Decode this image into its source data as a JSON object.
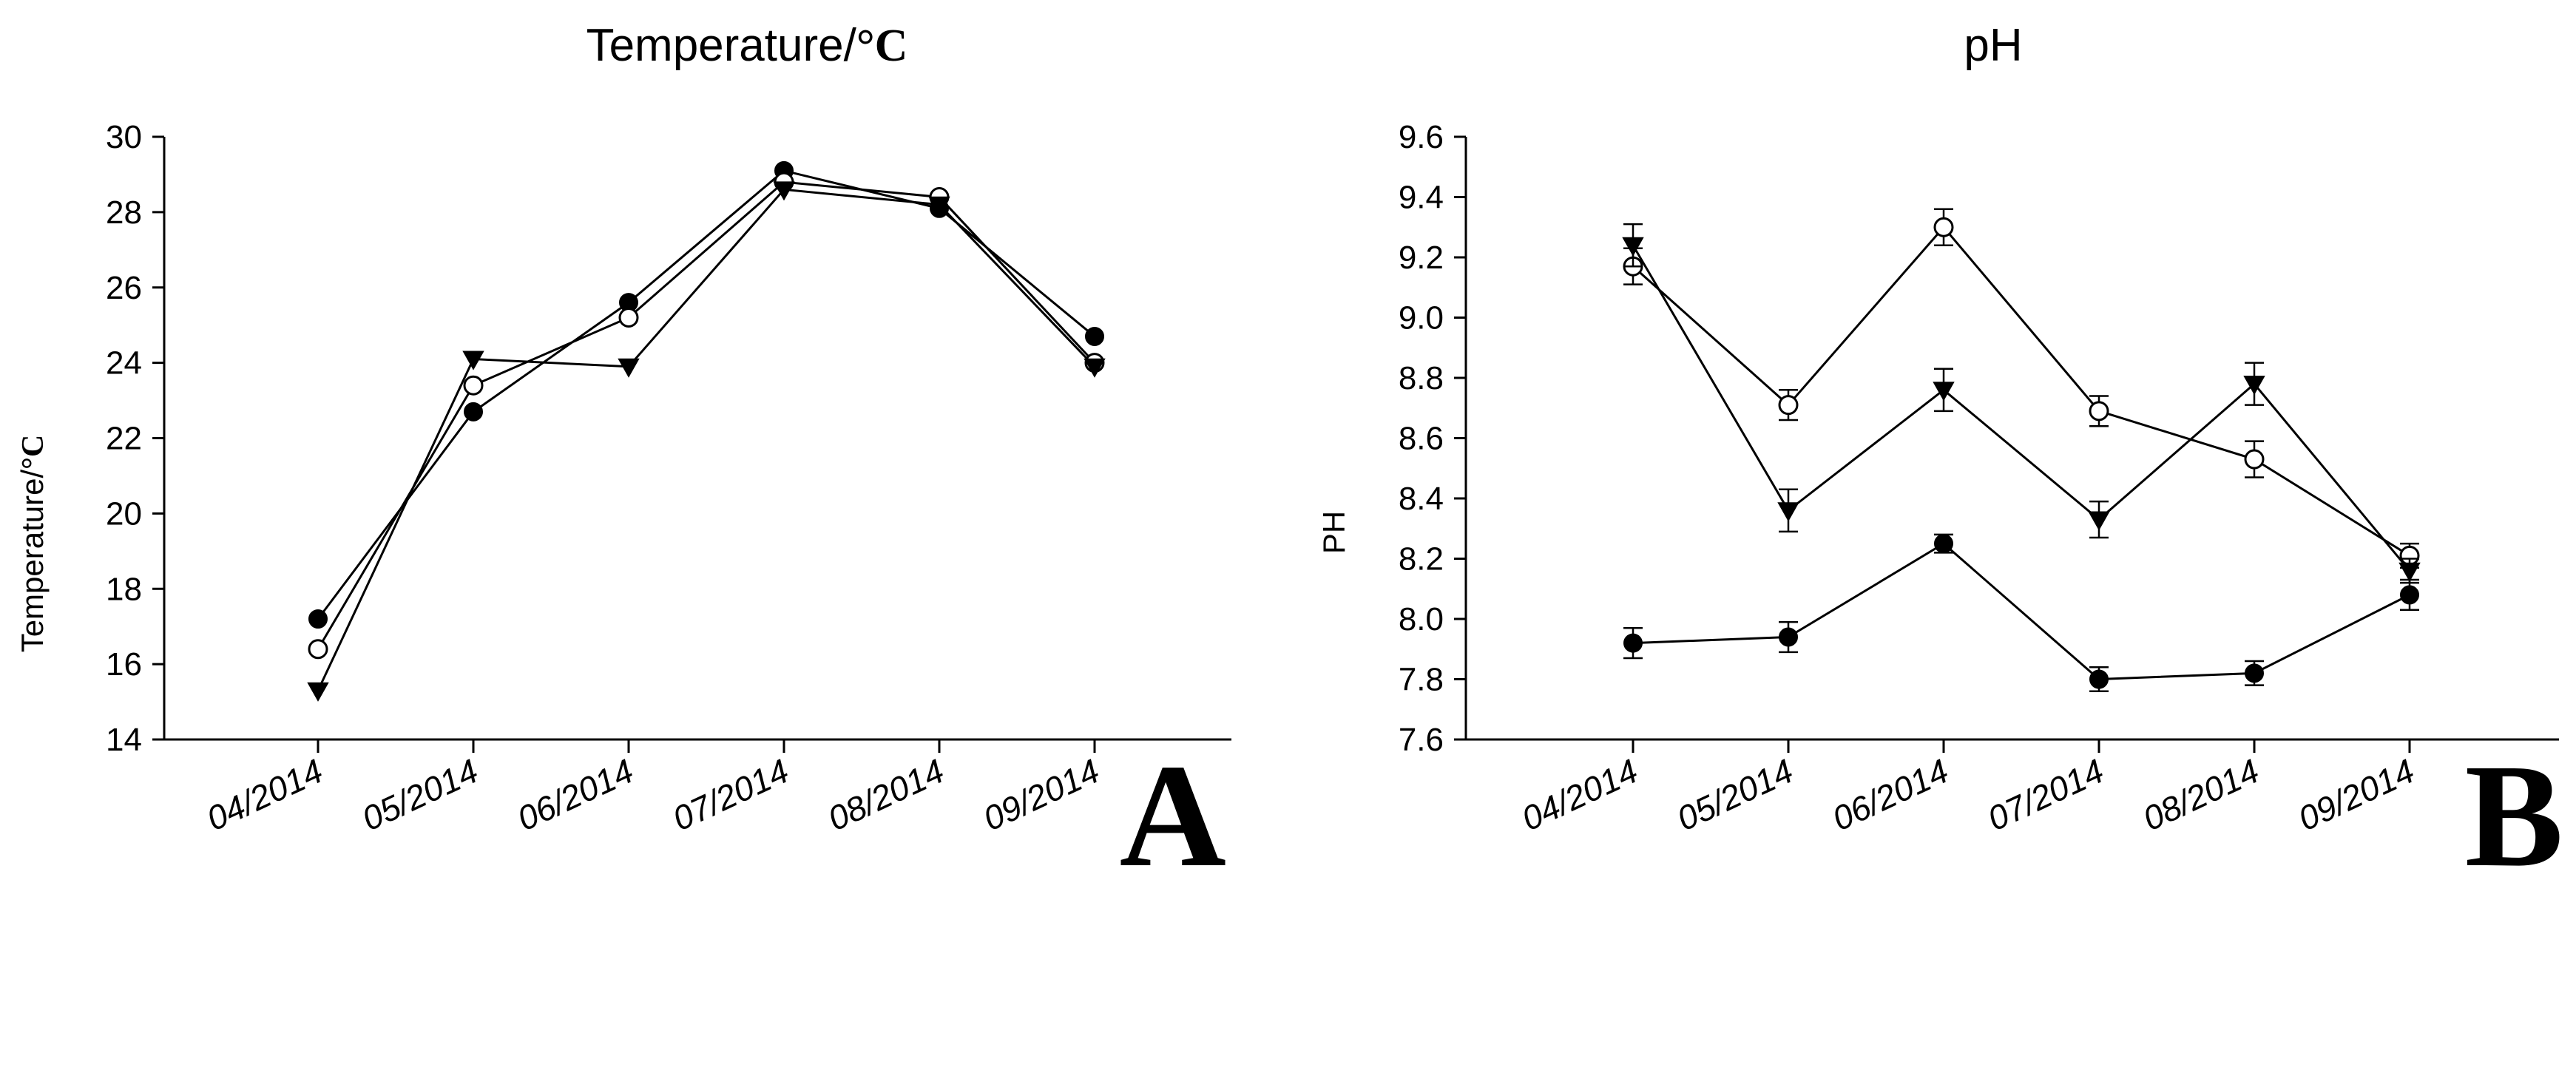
{
  "chart_data": [
    {
      "type": "line",
      "title": "Temperature/",
      "title_unit": "°C",
      "xlabel": "",
      "ylabel": "Temperature/",
      "ylabel_unit": "°C",
      "ylim": [
        14,
        30
      ],
      "yticks": [
        14,
        16,
        18,
        20,
        22,
        24,
        26,
        28,
        30
      ],
      "categories": [
        "04/2014",
        "05/2014",
        "06/2014",
        "07/2014",
        "08/2014",
        "09/2014"
      ],
      "panel_label": "A",
      "series": [
        {
          "name": "filled circle",
          "marker": "circle-filled",
          "values": [
            17.2,
            22.7,
            25.6,
            29.1,
            28.1,
            24.7
          ]
        },
        {
          "name": "open circle",
          "marker": "circle-open",
          "values": [
            16.4,
            23.4,
            25.2,
            28.8,
            28.4,
            24.0
          ]
        },
        {
          "name": "filled triangle",
          "marker": "triangle-down",
          "values": [
            15.3,
            24.1,
            23.9,
            28.6,
            28.2,
            23.9
          ]
        }
      ]
    },
    {
      "type": "line",
      "title": "pH",
      "xlabel": "",
      "ylabel": "PH",
      "ylim": [
        7.6,
        9.6
      ],
      "yticks": [
        7.6,
        7.8,
        8.0,
        8.2,
        8.4,
        8.6,
        8.8,
        9.0,
        9.2,
        9.4,
        9.6
      ],
      "categories": [
        "04/2014",
        "05/2014",
        "06/2014",
        "07/2014",
        "08/2014",
        "09/2014"
      ],
      "panel_label": "B",
      "series": [
        {
          "name": "filled circle",
          "marker": "circle-filled",
          "values": [
            7.92,
            7.94,
            8.25,
            7.8,
            7.82,
            8.08
          ],
          "errors": [
            0.05,
            0.05,
            0.03,
            0.04,
            0.04,
            0.05
          ]
        },
        {
          "name": "open circle",
          "marker": "circle-open",
          "values": [
            9.17,
            8.71,
            9.3,
            8.69,
            8.53,
            8.21
          ],
          "errors": [
            0.06,
            0.05,
            0.06,
            0.05,
            0.06,
            0.04
          ]
        },
        {
          "name": "filled triangle",
          "marker": "triangle-down",
          "values": [
            9.24,
            8.36,
            8.76,
            8.33,
            8.78,
            8.16
          ],
          "errors": [
            0.07,
            0.07,
            0.07,
            0.06,
            0.07,
            0.04
          ]
        }
      ]
    }
  ]
}
